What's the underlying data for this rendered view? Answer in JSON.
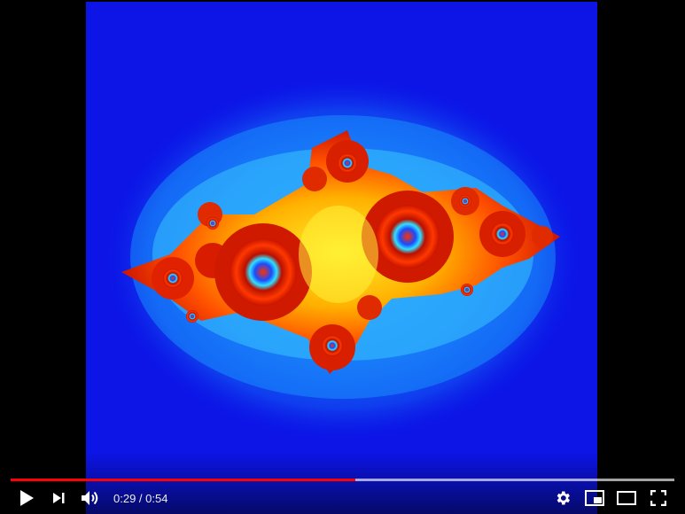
{
  "player": {
    "time": {
      "current": "0:29",
      "separator": " / ",
      "duration": "0:54"
    },
    "progress": {
      "played_fraction": 0.52,
      "buffered_fraction": 1.0
    },
    "colors": {
      "played": "#ff0000",
      "video_background": "#0c14e6",
      "chrome_background": "#000000"
    },
    "controls_left": [
      "play-icon",
      "next-icon",
      "volume-icon"
    ],
    "controls_right": [
      "gear-icon",
      "miniplayer-icon",
      "theater-mode-icon",
      "fullscreen-icon"
    ]
  }
}
